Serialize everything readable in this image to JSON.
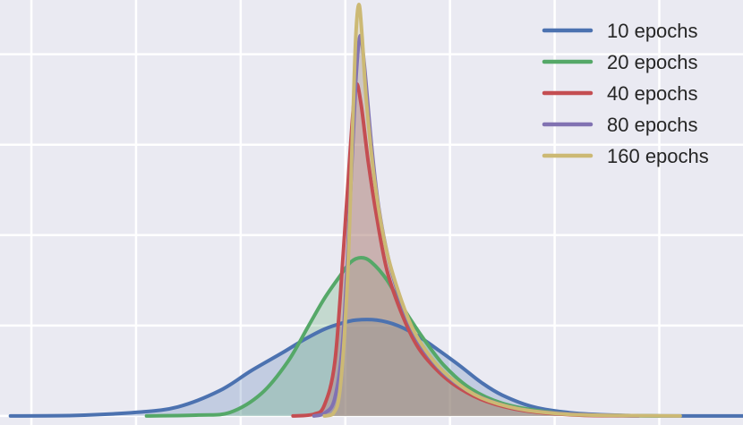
{
  "chart_data": {
    "type": "area",
    "title": "",
    "xlabel": "",
    "ylabel": "",
    "grid": true,
    "legend_position": "top-right",
    "xlim": [
      -3.3,
      3.8
    ],
    "ylim": [
      -0.1,
      4.6
    ],
    "background": "#eaeaf2",
    "series": [
      {
        "name": "10 epochs",
        "color": "#4c72b0",
        "points": [
          [
            -3.2,
            0.0
          ],
          [
            -2.6,
            0.005
          ],
          [
            -2.0,
            0.04
          ],
          [
            -1.6,
            0.1
          ],
          [
            -1.2,
            0.28
          ],
          [
            -0.9,
            0.5
          ],
          [
            -0.6,
            0.7
          ],
          [
            -0.4,
            0.84
          ],
          [
            -0.2,
            0.96
          ],
          [
            -0.05,
            1.02
          ],
          [
            0.1,
            1.06
          ],
          [
            0.3,
            1.06
          ],
          [
            0.5,
            1.0
          ],
          [
            0.7,
            0.88
          ],
          [
            0.9,
            0.72
          ],
          [
            1.1,
            0.55
          ],
          [
            1.3,
            0.37
          ],
          [
            1.5,
            0.23
          ],
          [
            1.8,
            0.1
          ],
          [
            2.2,
            0.03
          ],
          [
            2.7,
            0.005
          ],
          [
            3.2,
            0.0
          ],
          [
            3.8,
            0.0
          ]
        ]
      },
      {
        "name": "20 epochs",
        "color": "#55a868",
        "points": [
          [
            -1.9,
            0.0
          ],
          [
            -1.4,
            0.01
          ],
          [
            -1.1,
            0.04
          ],
          [
            -0.8,
            0.25
          ],
          [
            -0.55,
            0.6
          ],
          [
            -0.35,
            1.0
          ],
          [
            -0.2,
            1.3
          ],
          [
            -0.05,
            1.55
          ],
          [
            0.05,
            1.7
          ],
          [
            0.15,
            1.75
          ],
          [
            0.25,
            1.7
          ],
          [
            0.4,
            1.5
          ],
          [
            0.55,
            1.2
          ],
          [
            0.75,
            0.85
          ],
          [
            0.95,
            0.55
          ],
          [
            1.2,
            0.3
          ],
          [
            1.5,
            0.14
          ],
          [
            1.9,
            0.05
          ],
          [
            2.4,
            0.01
          ],
          [
            3.0,
            0.0
          ]
        ]
      },
      {
        "name": "40 epochs",
        "color": "#c44e52",
        "points": [
          [
            -0.5,
            0.0
          ],
          [
            -0.3,
            0.02
          ],
          [
            -0.2,
            0.12
          ],
          [
            -0.1,
            0.6
          ],
          [
            -0.02,
            1.8
          ],
          [
            0.05,
            3.0
          ],
          [
            0.1,
            3.65
          ],
          [
            0.15,
            3.45
          ],
          [
            0.22,
            2.8
          ],
          [
            0.3,
            2.2
          ],
          [
            0.4,
            1.6
          ],
          [
            0.55,
            1.1
          ],
          [
            0.7,
            0.75
          ],
          [
            0.9,
            0.48
          ],
          [
            1.1,
            0.3
          ],
          [
            1.35,
            0.16
          ],
          [
            1.7,
            0.06
          ],
          [
            2.2,
            0.01
          ],
          [
            2.8,
            0.0
          ]
        ]
      },
      {
        "name": "80 epochs",
        "color": "#8172b2",
        "points": [
          [
            -0.3,
            0.0
          ],
          [
            -0.2,
            0.03
          ],
          [
            -0.1,
            0.2
          ],
          [
            -0.02,
            0.9
          ],
          [
            0.05,
            2.5
          ],
          [
            0.1,
            3.7
          ],
          [
            0.14,
            4.2
          ],
          [
            0.18,
            3.9
          ],
          [
            0.25,
            3.0
          ],
          [
            0.32,
            2.3
          ],
          [
            0.42,
            1.7
          ],
          [
            0.55,
            1.2
          ],
          [
            0.7,
            0.82
          ],
          [
            0.9,
            0.52
          ],
          [
            1.1,
            0.33
          ],
          [
            1.35,
            0.18
          ],
          [
            1.7,
            0.07
          ],
          [
            2.2,
            0.02
          ],
          [
            2.8,
            0.0
          ]
        ]
      },
      {
        "name": "160 epochs",
        "color": "#ccb974",
        "points": [
          [
            -0.2,
            0.0
          ],
          [
            -0.12,
            0.02
          ],
          [
            -0.05,
            0.3
          ],
          [
            0.02,
            1.5
          ],
          [
            0.07,
            3.2
          ],
          [
            0.1,
            4.2
          ],
          [
            0.13,
            4.55
          ],
          [
            0.16,
            4.2
          ],
          [
            0.2,
            3.5
          ],
          [
            0.28,
            2.6
          ],
          [
            0.38,
            1.9
          ],
          [
            0.5,
            1.4
          ],
          [
            0.65,
            0.95
          ],
          [
            0.85,
            0.6
          ],
          [
            1.05,
            0.38
          ],
          [
            1.3,
            0.2
          ],
          [
            1.65,
            0.08
          ],
          [
            2.1,
            0.02
          ],
          [
            2.6,
            0.005
          ],
          [
            3.2,
            0.0
          ]
        ]
      }
    ]
  }
}
